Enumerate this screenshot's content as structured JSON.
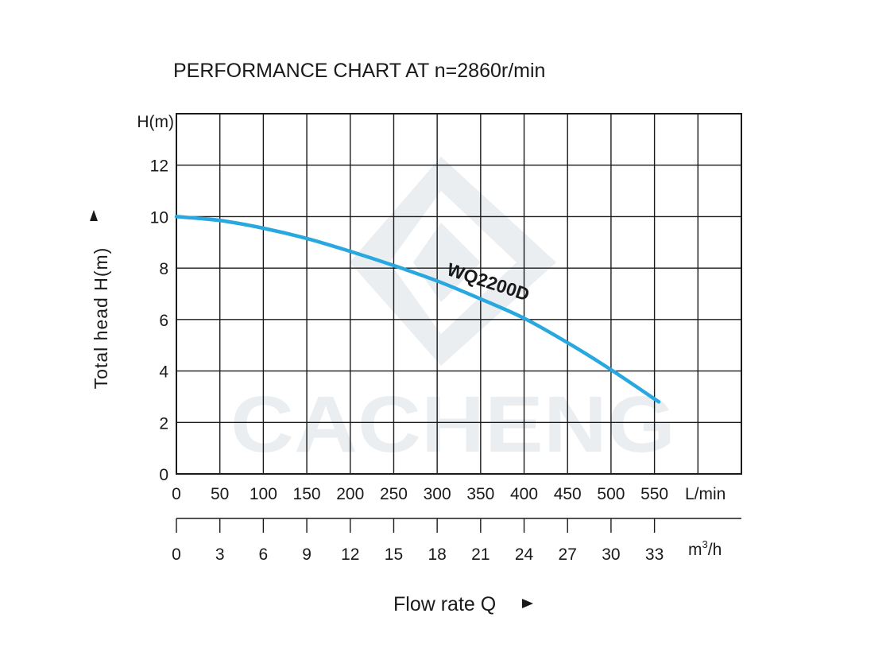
{
  "chart_data": {
    "type": "line",
    "title": "PERFORMANCE  CHART  AT  n=2860r/min",
    "xlabel": "Flow rate  Q",
    "ylabel": "Total  head H(m)",
    "y_unit": "H(m)",
    "x_unit_primary": "L/min",
    "x_unit_secondary_base": "m",
    "x_unit_secondary_sup": "3",
    "x_unit_secondary_tail": "/h",
    "xlim": [
      0,
      650
    ],
    "ylim": [
      0,
      14
    ],
    "x_ticks": [
      0,
      50,
      100,
      150,
      200,
      250,
      300,
      350,
      400,
      450,
      500,
      550
    ],
    "y_ticks": [
      0,
      2,
      4,
      6,
      8,
      10,
      12
    ],
    "secondary_x_ticks": [
      0,
      3,
      6,
      9,
      12,
      15,
      18,
      21,
      24,
      27,
      30,
      33
    ],
    "grid": true,
    "watermark": "CACHENG",
    "series": [
      {
        "name": "WQ2200D",
        "color": "#29a8e0",
        "x": [
          0,
          50,
          100,
          150,
          200,
          250,
          300,
          350,
          400,
          450,
          500,
          555
        ],
        "y": [
          10.0,
          9.85,
          9.55,
          9.15,
          8.65,
          8.1,
          7.5,
          6.8,
          6.05,
          5.1,
          4.05,
          2.8
        ]
      }
    ]
  }
}
